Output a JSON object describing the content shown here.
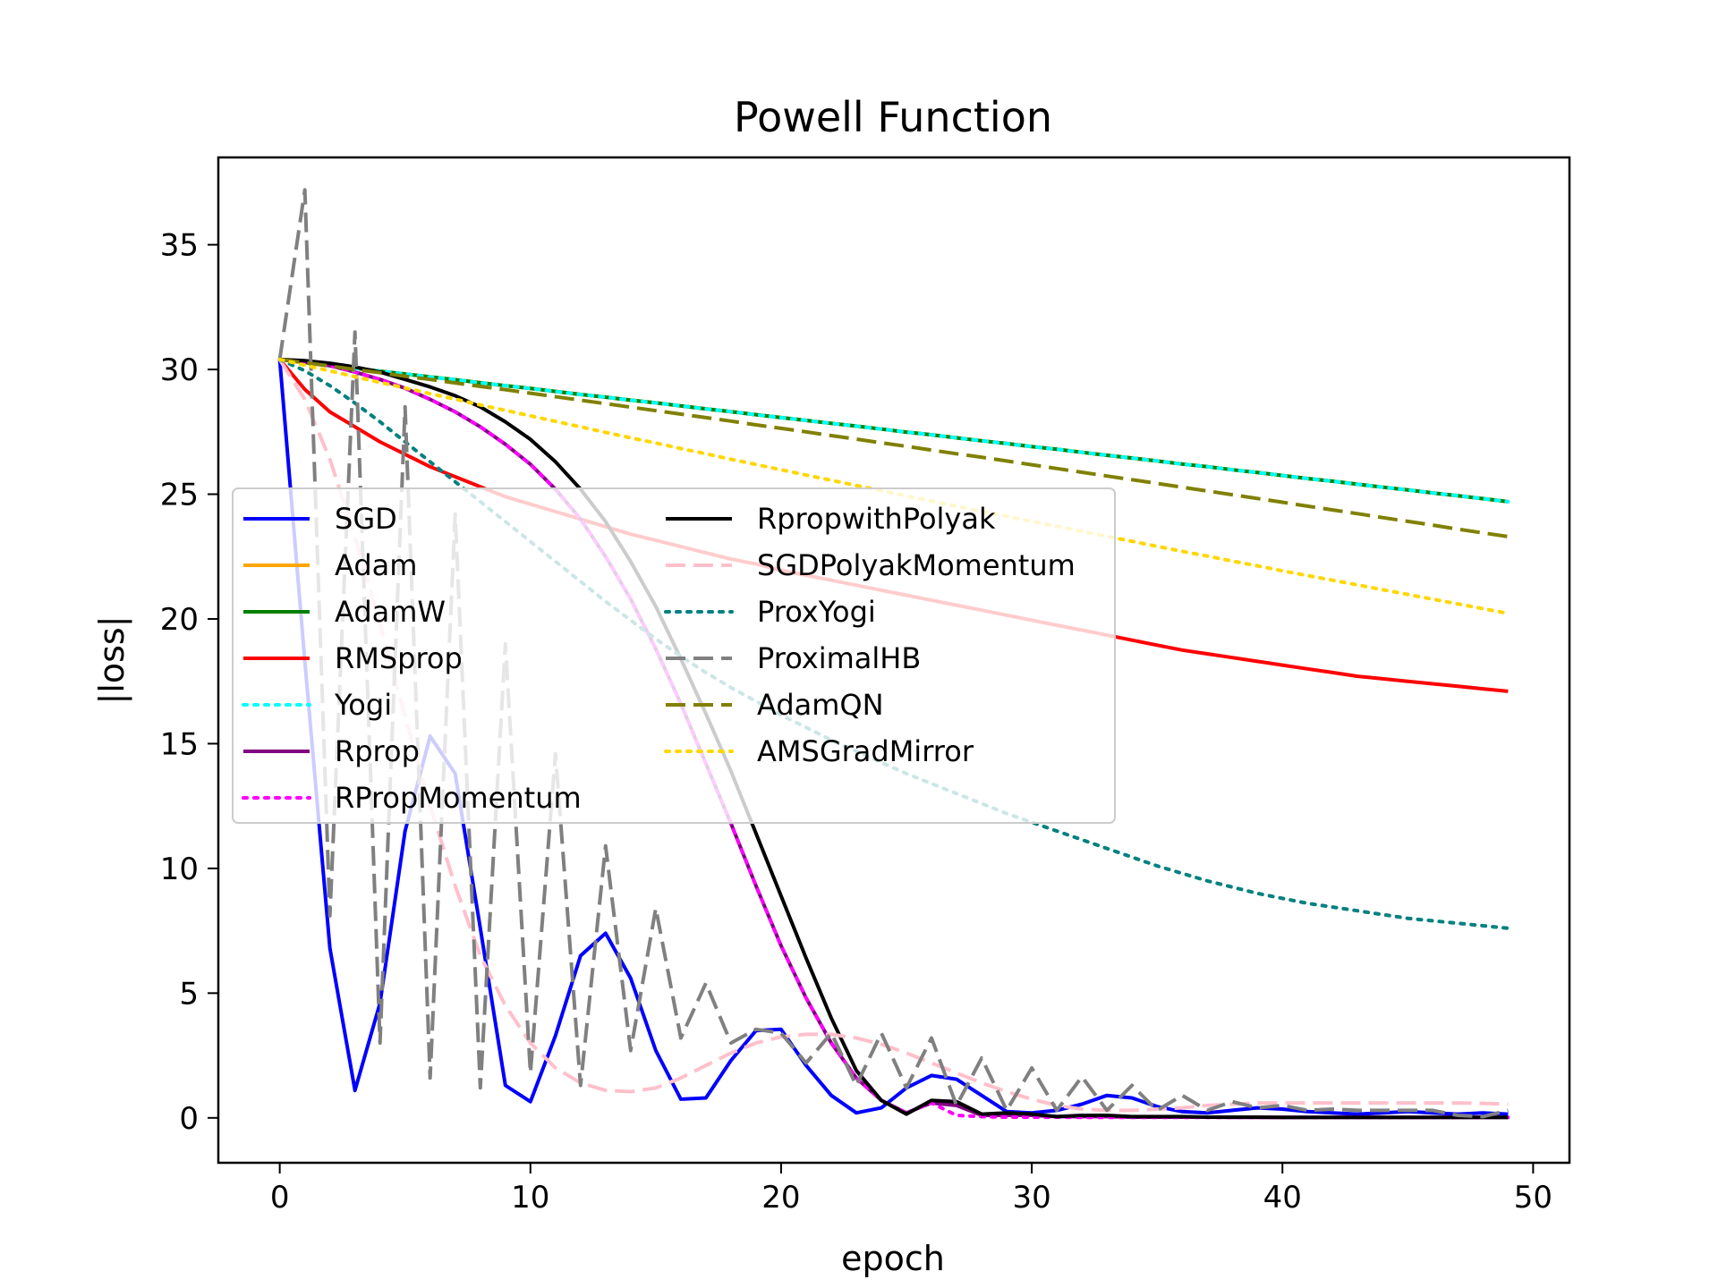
{
  "chart_data": {
    "type": "line",
    "title": "Powell Function",
    "xlabel": "epoch",
    "ylabel": "|loss|",
    "xlim": [
      -2.45,
      51.45
    ],
    "ylim": [
      -1.8,
      38.5
    ],
    "xticks": [
      0,
      10,
      20,
      30,
      40,
      50
    ],
    "yticks": [
      0,
      5,
      10,
      15,
      20,
      25,
      30,
      35
    ],
    "grid": false,
    "legend_position": "center-left",
    "legend_columns": 2,
    "series": [
      {
        "name": "SGD",
        "color": "#0000ff",
        "dash": "solid",
        "values": [
          30.4,
          18.3,
          6.8,
          1.1,
          4.6,
          11.5,
          15.3,
          13.8,
          7.6,
          1.3,
          0.65,
          3.3,
          6.5,
          7.4,
          5.6,
          2.7,
          0.75,
          0.8,
          2.3,
          3.5,
          3.55,
          2.1,
          0.9,
          0.2,
          0.4,
          1.2,
          1.7,
          1.55,
          0.9,
          0.25,
          0.2,
          0.3,
          0.55,
          0.9,
          0.8,
          0.45,
          0.25,
          0.2,
          0.3,
          0.4,
          0.35,
          0.25,
          0.2,
          0.15,
          0.2,
          0.25,
          0.2,
          0.15,
          0.2,
          0.15
        ]
      },
      {
        "name": "Adam",
        "color": "#ffa500",
        "dash": "solid",
        "values": [
          30.4,
          30.28,
          30.17,
          30.05,
          29.93,
          29.82,
          29.7,
          29.59,
          29.47,
          29.35,
          29.24,
          29.12,
          29.0,
          28.89,
          28.77,
          28.66,
          28.54,
          28.42,
          28.31,
          28.19,
          28.07,
          27.96,
          27.84,
          27.73,
          27.61,
          27.49,
          27.38,
          27.26,
          27.14,
          27.03,
          26.91,
          26.8,
          26.68,
          26.56,
          26.45,
          26.33,
          26.21,
          26.1,
          25.98,
          25.87,
          25.75,
          25.63,
          25.52,
          25.4,
          25.28,
          25.17,
          25.05,
          24.94,
          24.82,
          24.7
        ]
      },
      {
        "name": "AdamW",
        "color": "#008000",
        "dash": "solid",
        "values": [
          30.4,
          30.28,
          30.17,
          30.05,
          29.93,
          29.82,
          29.7,
          29.59,
          29.47,
          29.35,
          29.24,
          29.12,
          29.0,
          28.89,
          28.77,
          28.66,
          28.54,
          28.42,
          28.31,
          28.19,
          28.07,
          27.96,
          27.84,
          27.73,
          27.61,
          27.49,
          27.38,
          27.26,
          27.14,
          27.03,
          26.91,
          26.8,
          26.68,
          26.56,
          26.45,
          26.33,
          26.21,
          26.1,
          25.98,
          25.87,
          25.75,
          25.63,
          25.52,
          25.4,
          25.28,
          25.17,
          25.05,
          24.94,
          24.82,
          24.7
        ]
      },
      {
        "name": "RMSprop",
        "color": "#ff0000",
        "dash": "solid",
        "values": [
          30.4,
          29.2,
          28.3,
          27.7,
          27.1,
          26.6,
          26.1,
          25.7,
          25.3,
          24.9,
          24.6,
          24.3,
          24.0,
          23.7,
          23.4,
          23.15,
          22.9,
          22.65,
          22.4,
          22.2,
          21.95,
          21.75,
          21.55,
          21.35,
          21.15,
          20.95,
          20.75,
          20.55,
          20.35,
          20.15,
          19.95,
          19.75,
          19.55,
          19.35,
          19.15,
          18.95,
          18.75,
          18.6,
          18.45,
          18.3,
          18.15,
          18.0,
          17.85,
          17.7,
          17.6,
          17.5,
          17.4,
          17.3,
          17.2,
          17.1
        ]
      },
      {
        "name": "Yogi",
        "color": "#00ffff",
        "dash": "dotted",
        "values": [
          30.4,
          30.28,
          30.17,
          30.05,
          29.93,
          29.82,
          29.7,
          29.59,
          29.47,
          29.35,
          29.24,
          29.12,
          29.0,
          28.89,
          28.77,
          28.66,
          28.54,
          28.42,
          28.31,
          28.19,
          28.07,
          27.96,
          27.84,
          27.73,
          27.61,
          27.49,
          27.38,
          27.26,
          27.14,
          27.03,
          26.91,
          26.8,
          26.68,
          26.56,
          26.45,
          26.33,
          26.21,
          26.1,
          25.98,
          25.87,
          25.75,
          25.63,
          25.52,
          25.4,
          25.28,
          25.17,
          25.05,
          24.94,
          24.82,
          24.7
        ]
      },
      {
        "name": "Rprop",
        "color": "#800080",
        "dash": "solid",
        "values": [
          30.4,
          30.3,
          30.15,
          29.9,
          29.6,
          29.25,
          28.8,
          28.3,
          27.7,
          27.0,
          26.2,
          25.2,
          24.0,
          22.5,
          20.8,
          18.8,
          16.6,
          14.2,
          11.8,
          9.3,
          6.9,
          4.8,
          3.0,
          1.6,
          0.7,
          0.2,
          0.6,
          0.5,
          0.1,
          0.1,
          0.1,
          0.05,
          0.05,
          0.05,
          0.03,
          0.03,
          0.03,
          0.03,
          0.02,
          0.02,
          0.02,
          0.02,
          0.02,
          0.02,
          0.02,
          0.02,
          0.02,
          0.02,
          0.02,
          0.02
        ]
      },
      {
        "name": "RPropMomentum",
        "color": "#ff00ff",
        "dash": "dotted",
        "values": [
          30.4,
          30.3,
          30.15,
          29.9,
          29.6,
          29.25,
          28.8,
          28.3,
          27.7,
          27.0,
          26.2,
          25.2,
          24.0,
          22.5,
          20.8,
          18.8,
          16.6,
          14.2,
          11.8,
          9.3,
          6.9,
          4.8,
          3.0,
          1.6,
          0.7,
          0.2,
          0.6,
          0.1,
          0.05,
          0.03,
          0.03,
          0.03,
          0.02,
          0.02,
          0.02,
          0.02,
          0.02,
          0.02,
          0.02,
          0.02,
          0.02,
          0.02,
          0.02,
          0.02,
          0.02,
          0.02,
          0.02,
          0.02,
          0.02,
          0.02
        ]
      },
      {
        "name": "RpropwithPolyak",
        "color": "#000000",
        "dash": "solid",
        "values": [
          30.4,
          30.35,
          30.25,
          30.1,
          29.9,
          29.6,
          29.3,
          28.95,
          28.5,
          27.9,
          27.2,
          26.3,
          25.2,
          23.9,
          22.3,
          20.5,
          18.4,
          16.2,
          13.9,
          11.4,
          8.9,
          6.4,
          4.0,
          1.9,
          0.7,
          0.15,
          0.7,
          0.65,
          0.15,
          0.2,
          0.15,
          0.05,
          0.1,
          0.1,
          0.05,
          0.05,
          0.05,
          0.03,
          0.03,
          0.03,
          0.02,
          0.02,
          0.02,
          0.02,
          0.02,
          0.02,
          0.02,
          0.02,
          0.02,
          0.02
        ]
      },
      {
        "name": "SGDPolyakMomentum",
        "color": "#ffc0cb",
        "dash": "dashed",
        "values": [
          30.4,
          28.8,
          26.4,
          23.3,
          19.8,
          16.1,
          12.5,
          9.3,
          6.5,
          4.5,
          3.0,
          2.0,
          1.4,
          1.1,
          1.05,
          1.2,
          1.6,
          2.1,
          2.6,
          3.0,
          3.25,
          3.35,
          3.35,
          3.2,
          2.95,
          2.6,
          2.2,
          1.8,
          1.4,
          1.05,
          0.75,
          0.5,
          0.35,
          0.3,
          0.3,
          0.35,
          0.4,
          0.5,
          0.55,
          0.6,
          0.6,
          0.6,
          0.6,
          0.6,
          0.6,
          0.6,
          0.6,
          0.6,
          0.58,
          0.55
        ]
      },
      {
        "name": "ProxYogi",
        "color": "#008080",
        "dash": "dotted",
        "values": [
          30.4,
          29.95,
          29.35,
          28.65,
          27.9,
          27.1,
          26.3,
          25.5,
          24.7,
          23.9,
          23.1,
          22.3,
          21.5,
          20.7,
          19.95,
          19.2,
          18.5,
          17.85,
          17.25,
          16.7,
          16.15,
          15.65,
          15.15,
          14.7,
          14.25,
          13.8,
          13.4,
          13.0,
          12.6,
          12.2,
          11.85,
          11.5,
          11.15,
          10.8,
          10.45,
          10.1,
          9.8,
          9.5,
          9.25,
          9.0,
          8.8,
          8.6,
          8.45,
          8.3,
          8.15,
          8.0,
          7.9,
          7.8,
          7.7,
          7.6
        ]
      },
      {
        "name": "ProximalHB",
        "color": "#808080",
        "dash": "dashed",
        "values": [
          30.4,
          37.2,
          8.1,
          31.5,
          3.0,
          28.5,
          1.6,
          24.2,
          1.2,
          19.0,
          1.8,
          14.6,
          1.3,
          10.9,
          2.7,
          8.4,
          3.2,
          5.4,
          3.0,
          3.55,
          3.4,
          2.2,
          3.4,
          1.3,
          3.4,
          1.2,
          3.2,
          0.5,
          2.4,
          0.3,
          2.0,
          0.3,
          1.65,
          0.3,
          1.3,
          0.3,
          0.9,
          0.3,
          0.65,
          0.4,
          0.5,
          0.3,
          0.35,
          0.3,
          0.3,
          0.3,
          0.3,
          0.1,
          0.05,
          0.3
        ]
      },
      {
        "name": "AdamQN",
        "color": "#808000",
        "dash": "dashed",
        "values": [
          30.4,
          30.27,
          30.14,
          30.0,
          29.87,
          29.73,
          29.6,
          29.46,
          29.32,
          29.19,
          29.05,
          28.91,
          28.77,
          28.63,
          28.49,
          28.35,
          28.21,
          28.07,
          27.93,
          27.78,
          27.64,
          27.5,
          27.35,
          27.21,
          27.06,
          26.92,
          26.77,
          26.62,
          26.48,
          26.33,
          26.18,
          26.03,
          25.88,
          25.73,
          25.58,
          25.43,
          25.28,
          25.13,
          24.98,
          24.83,
          24.68,
          24.52,
          24.37,
          24.22,
          24.06,
          23.91,
          23.76,
          23.6,
          23.45,
          23.3
        ]
      },
      {
        "name": "AMSGradMirror",
        "color": "#ffd700",
        "dash": "dotted",
        "values": [
          30.4,
          30.17,
          29.94,
          29.71,
          29.48,
          29.26,
          29.03,
          28.81,
          28.58,
          28.36,
          28.14,
          27.92,
          27.7,
          27.48,
          27.26,
          27.05,
          26.83,
          26.62,
          26.4,
          26.19,
          25.98,
          25.77,
          25.56,
          25.35,
          25.14,
          24.93,
          24.73,
          24.52,
          24.32,
          24.11,
          23.91,
          23.71,
          23.51,
          23.31,
          23.11,
          22.91,
          22.71,
          22.52,
          22.32,
          22.13,
          21.93,
          21.74,
          21.55,
          21.36,
          21.17,
          20.98,
          20.79,
          20.6,
          20.41,
          20.22
        ]
      }
    ]
  }
}
